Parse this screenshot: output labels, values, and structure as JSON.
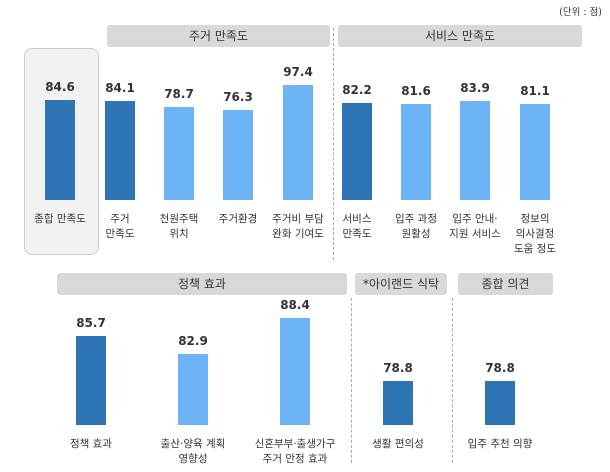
{
  "unit": "(단위 : 점)",
  "chart_data": [
    {
      "type": "bar",
      "categories": [
        "종합 만족도"
      ],
      "values": [
        84.6
      ],
      "colors": [
        "#2e75b6"
      ]
    },
    {
      "type": "bar",
      "title": "주거 만족도",
      "categories": [
        "주거\n만족도",
        "천원주택\n위치",
        "주거환경",
        "주거비 부담\n완화 기여도"
      ],
      "values": [
        84.1,
        78.7,
        76.3,
        97.4
      ],
      "colors": [
        "#2e75b6",
        "#6cb4f5",
        "#6cb4f5",
        "#6cb4f5"
      ]
    },
    {
      "type": "bar",
      "title": "서비스 만족도",
      "categories": [
        "서비스\n만족도",
        "입주 과정\n원활성",
        "입주 안내·\n지원 서비스",
        "정보의\n의사결정\n도움 정도"
      ],
      "values": [
        82.2,
        81.6,
        83.9,
        81.1
      ],
      "colors": [
        "#2e75b6",
        "#6cb4f5",
        "#6cb4f5",
        "#6cb4f5"
      ]
    },
    {
      "type": "bar",
      "title": "정책 효과",
      "categories": [
        "정책 효과",
        "출산·양육 계획\n영향성",
        "신혼부부·출생가구\n주거 안정 효과"
      ],
      "values": [
        85.7,
        82.9,
        88.4
      ],
      "colors": [
        "#2e75b6",
        "#6cb4f5",
        "#6cb4f5"
      ]
    },
    {
      "type": "bar",
      "title": "*아이랜드 식탁",
      "categories": [
        "생활 편의성"
      ],
      "values": [
        78.8
      ],
      "colors": [
        "#2e75b6"
      ]
    },
    {
      "type": "bar",
      "title": "종합 의견",
      "categories": [
        "입주 추천 의향"
      ],
      "values": [
        78.8
      ],
      "colors": [
        "#2e75b6"
      ]
    }
  ]
}
